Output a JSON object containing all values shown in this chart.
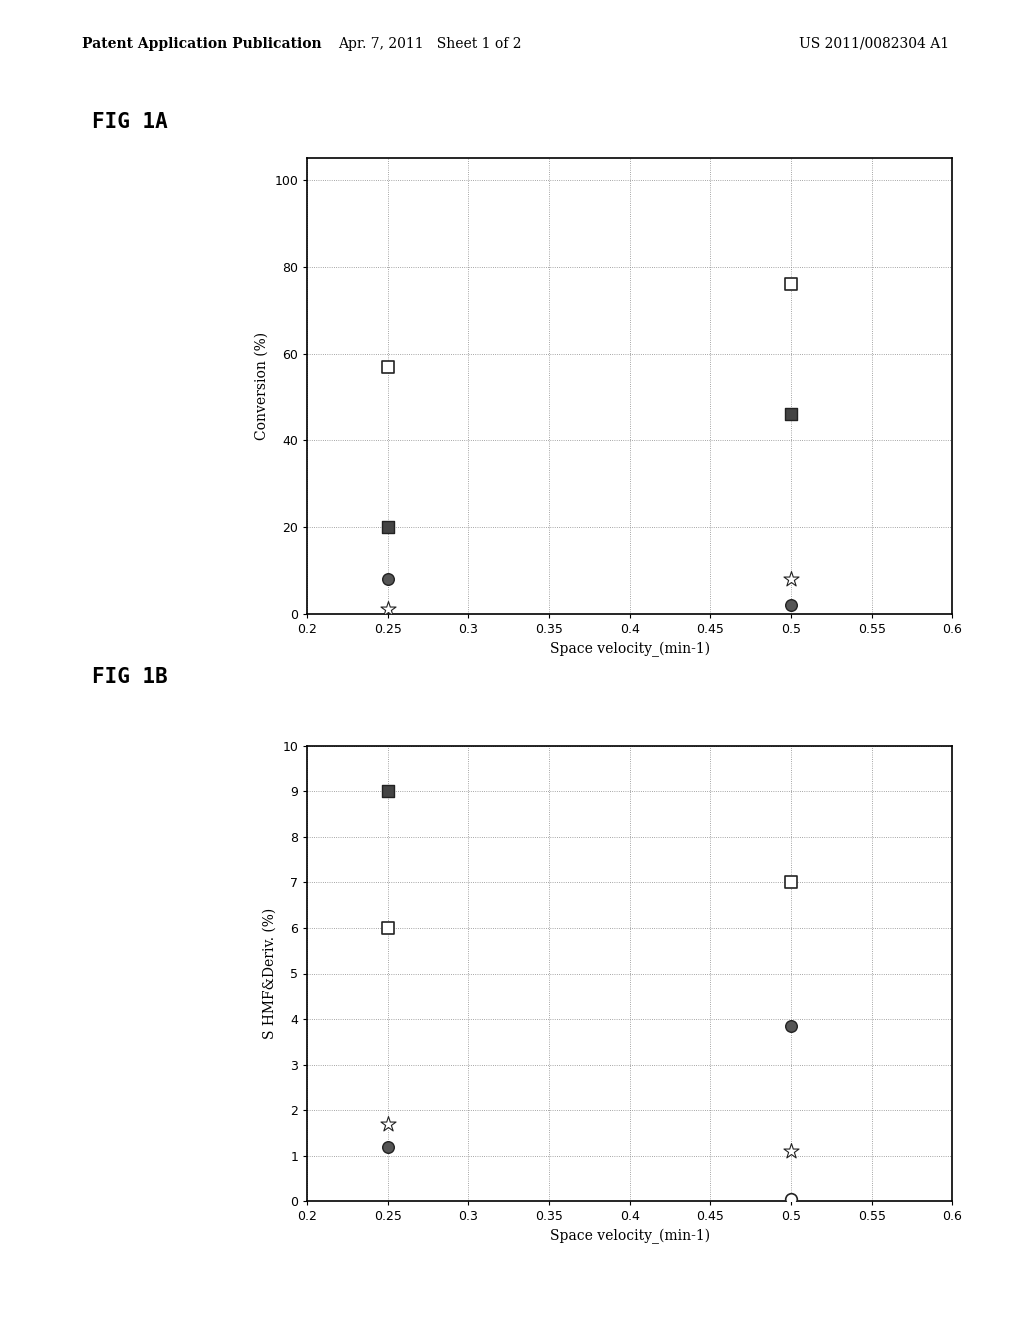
{
  "fig1a": {
    "xlabel": "Space velocity_(min-1)",
    "ylabel": "Conversion (%)",
    "xlim": [
      0.2,
      0.6
    ],
    "ylim": [
      0,
      105
    ],
    "xticks": [
      0.2,
      0.25,
      0.3,
      0.35,
      0.4,
      0.45,
      0.5,
      0.55,
      0.6
    ],
    "yticks": [
      0,
      20,
      40,
      60,
      80,
      100
    ],
    "xtick_labels": [
      "0.2",
      "0.25",
      "0.3",
      "0.35",
      "0.4",
      "0.45",
      "0.5",
      "0.55",
      "0.6"
    ],
    "ytick_labels": [
      "0",
      "20",
      "40",
      "60",
      "80",
      "100"
    ],
    "series": [
      {
        "x": [
          0.25,
          0.5
        ],
        "y": [
          57,
          76
        ],
        "marker": "s",
        "facecolor": "white",
        "edgecolor": "#222222",
        "size": 70,
        "lw": 1.2
      },
      {
        "x": [
          0.25,
          0.5
        ],
        "y": [
          20,
          46
        ],
        "marker": "s",
        "facecolor": "#444444",
        "edgecolor": "#222222",
        "size": 70,
        "lw": 1.0
      },
      {
        "x": [
          0.25,
          0.5
        ],
        "y": [
          8,
          2
        ],
        "marker": "o",
        "facecolor": "#555555",
        "edgecolor": "#222222",
        "size": 70,
        "lw": 1.0
      },
      {
        "x": [
          0.25,
          0.5
        ],
        "y": [
          1,
          8
        ],
        "marker": "*",
        "facecolor": "white",
        "edgecolor": "#222222",
        "size": 130,
        "lw": 0.8
      }
    ]
  },
  "fig1b": {
    "xlabel": "Space velocity_(min-1)",
    "ylabel": "S HMF&Deriv. (%)",
    "xlim": [
      0.2,
      0.6
    ],
    "ylim": [
      0,
      10
    ],
    "xticks": [
      0.2,
      0.25,
      0.3,
      0.35,
      0.4,
      0.45,
      0.5,
      0.55,
      0.6
    ],
    "yticks": [
      0,
      1,
      2,
      3,
      4,
      5,
      6,
      7,
      8,
      9,
      10
    ],
    "xtick_labels": [
      "0.2",
      "0.25",
      "0.3",
      "0.35",
      "0.4",
      "0.45",
      "0.5",
      "0.55",
      "0.6"
    ],
    "ytick_labels": [
      "0",
      "1",
      "2",
      "3",
      "4",
      "5",
      "6",
      "7",
      "8",
      "9",
      "10"
    ],
    "series": [
      {
        "x": [
          0.25,
          0.5
        ],
        "y": [
          6,
          7
        ],
        "marker": "s",
        "facecolor": "white",
        "edgecolor": "#222222",
        "size": 70,
        "lw": 1.2
      },
      {
        "x": [
          0.25
        ],
        "y": [
          9
        ],
        "marker": "s",
        "facecolor": "#444444",
        "edgecolor": "#222222",
        "size": 70,
        "lw": 1.0
      },
      {
        "x": [
          0.25,
          0.5
        ],
        "y": [
          1.2,
          3.85
        ],
        "marker": "o",
        "facecolor": "#555555",
        "edgecolor": "#222222",
        "size": 70,
        "lw": 1.0
      },
      {
        "x": [
          0.25,
          0.5
        ],
        "y": [
          1.7,
          1.1
        ],
        "marker": "*",
        "facecolor": "white",
        "edgecolor": "#222222",
        "size": 130,
        "lw": 0.8
      },
      {
        "x": [
          0.5
        ],
        "y": [
          0.05
        ],
        "marker": "o",
        "facecolor": "white",
        "edgecolor": "#222222",
        "size": 70,
        "lw": 1.2
      }
    ]
  },
  "header_left": "Patent Application Publication",
  "header_mid": "Apr. 7, 2011   Sheet 1 of 2",
  "header_right": "US 2011/0082304 A1",
  "fig1a_label": "FIG 1A",
  "fig1b_label": "FIG 1B",
  "background_color": "#ffffff",
  "plot_bg_color": "#ffffff",
  "grid_color": "#888888",
  "grid_ls": ":",
  "grid_lw": 0.6,
  "spine_lw": 1.2,
  "tick_fontsize": 9,
  "axis_label_fontsize": 10,
  "fig_label_fontsize": 15
}
